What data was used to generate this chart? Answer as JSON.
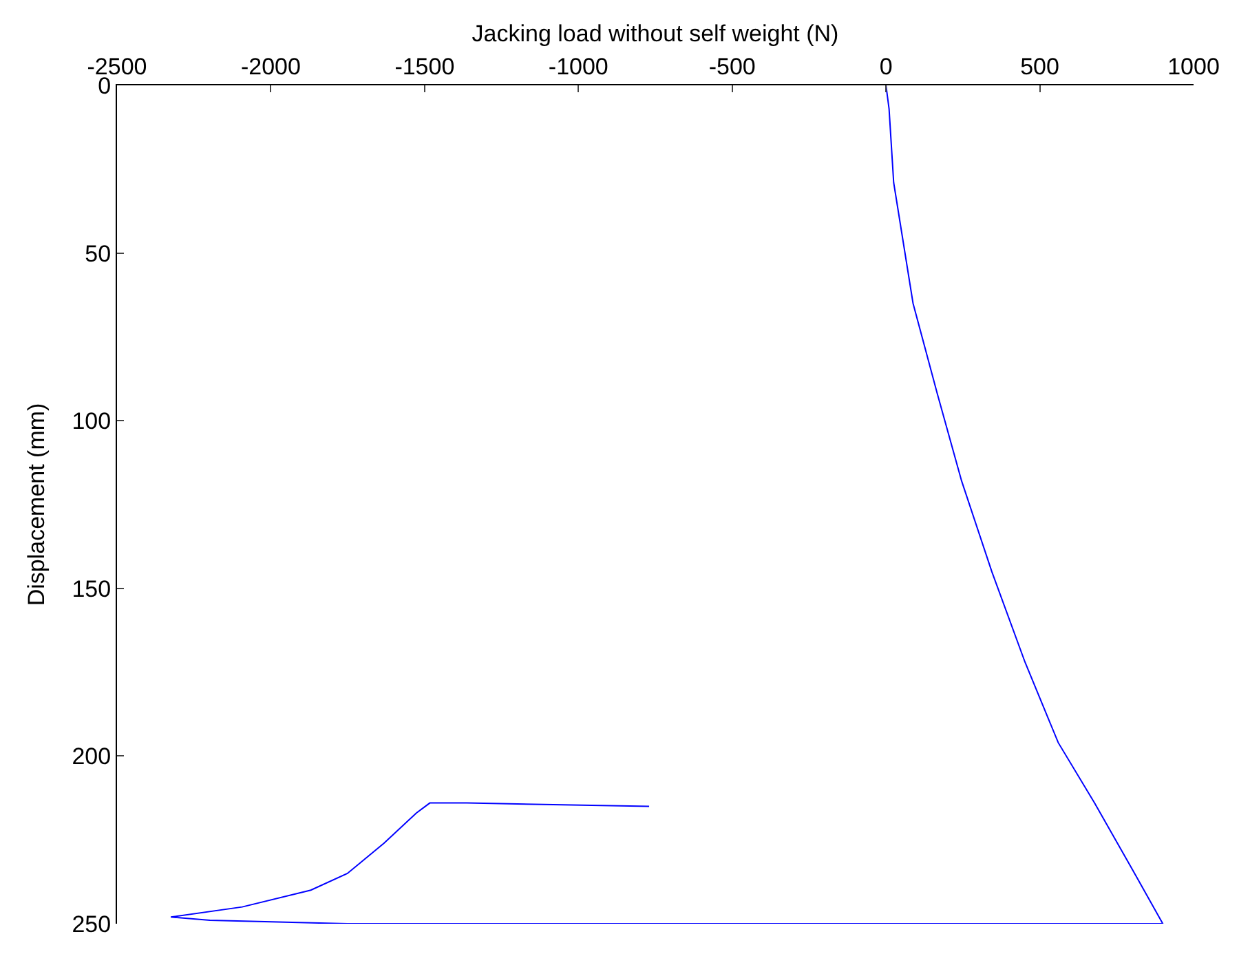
{
  "chart_data": {
    "type": "line",
    "xlabel": "Jacking load without self weight (N)",
    "ylabel": "Displacement (mm)",
    "xlim": [
      -2500,
      1000
    ],
    "xticks": [
      -2500,
      -2000,
      -1500,
      -1000,
      -500,
      0,
      500,
      1000
    ],
    "ylim": [
      250,
      0
    ],
    "yticks": [
      0,
      50,
      100,
      150,
      200,
      250
    ],
    "grid": false,
    "marker": "none",
    "line_style": "solid",
    "series": [
      {
        "color": "#0000ff",
        "x": [
          0,
          10,
          25,
          88,
          167,
          246,
          344,
          452,
          560,
          678,
          796,
          900,
          400,
          -400,
          -1751,
          -2198,
          -2325,
          -2093,
          -1870,
          -1751,
          -1632,
          -1527,
          -1483,
          -1363,
          -770
        ],
        "values": [
          0,
          7,
          29,
          65,
          92,
          118,
          145,
          172,
          196,
          214,
          233,
          250,
          250,
          250,
          250,
          249,
          248,
          245,
          240,
          235,
          226,
          217,
          214,
          214,
          215
        ]
      }
    ]
  }
}
